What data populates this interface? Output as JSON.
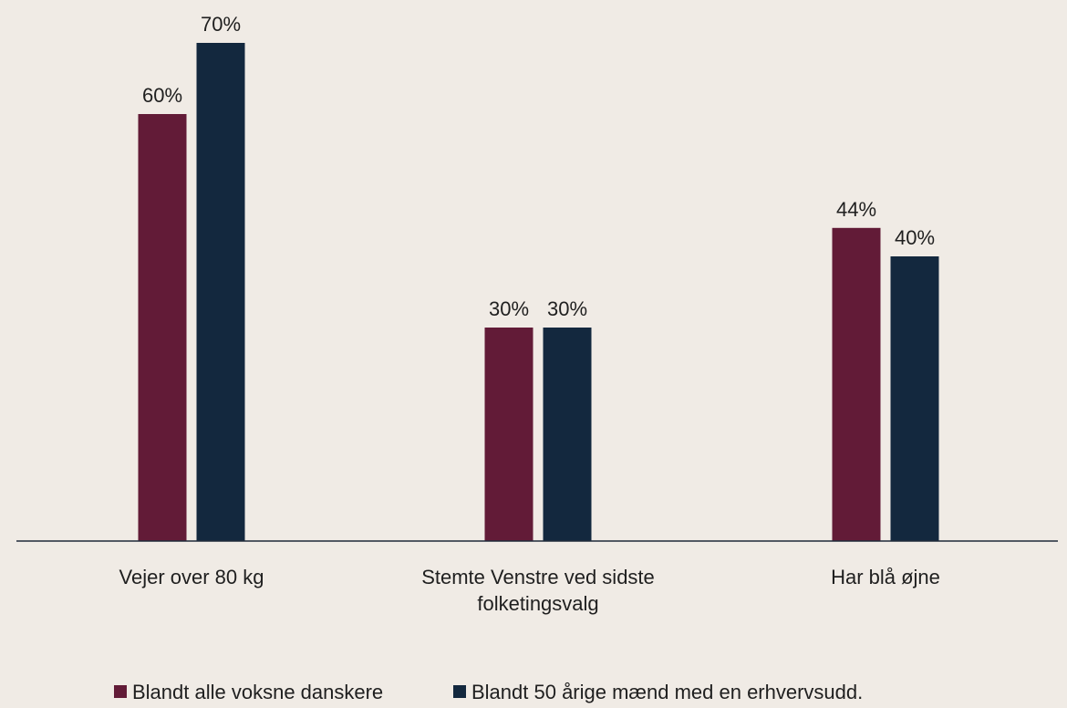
{
  "chart_data": {
    "type": "bar",
    "categories": [
      [
        "Vejer over 80 kg"
      ],
      [
        "Stemte Venstre ved sidste",
        "folketingsvalg"
      ],
      [
        "Har blå øjne"
      ]
    ],
    "series": [
      {
        "name": "Blandt alle voksne danskere",
        "values": [
          60,
          30,
          44
        ],
        "labels": [
          "60%",
          "30%",
          "44%"
        ],
        "color": "#621b37"
      },
      {
        "name": "Blandt 50 årige mænd med en erhvervsudd.",
        "values": [
          70,
          30,
          40
        ],
        "labels": [
          "70%",
          "30%",
          "40%"
        ],
        "color": "#13283e"
      }
    ],
    "ylim": [
      0,
      77
    ],
    "grid": false,
    "legend": "bottom"
  }
}
